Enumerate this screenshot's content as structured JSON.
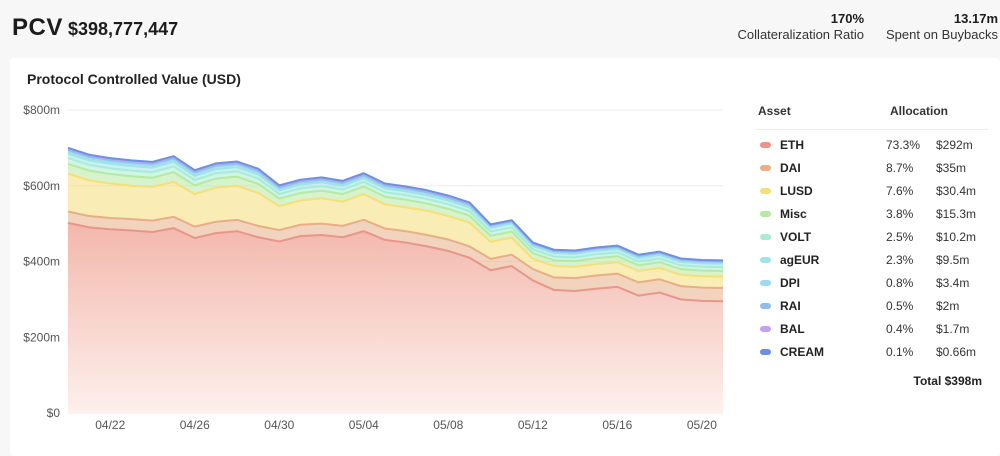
{
  "header": {
    "title": "PCV",
    "value": "$398,777,447",
    "stats": [
      {
        "value": "170%",
        "label": "Collateralization Ratio"
      },
      {
        "value": "13.17m",
        "label": "Spent on Buybacks"
      }
    ]
  },
  "chart_data": {
    "type": "area",
    "stacked": true,
    "title": "Protocol Controlled Value (USD)",
    "x": [
      "04/20",
      "04/21",
      "04/22",
      "04/23",
      "04/24",
      "04/25",
      "04/26",
      "04/27",
      "04/28",
      "04/29",
      "04/30",
      "05/01",
      "05/02",
      "05/03",
      "05/04",
      "05/05",
      "05/06",
      "05/07",
      "05/08",
      "05/09",
      "05/10",
      "05/11",
      "05/12",
      "05/13",
      "05/14",
      "05/15",
      "05/16",
      "05/17",
      "05/18",
      "05/19",
      "05/20",
      "05/21"
    ],
    "x_ticks": [
      "04/22",
      "04/26",
      "04/30",
      "05/04",
      "05/08",
      "05/12",
      "05/16",
      "05/20"
    ],
    "ylim": [
      0,
      800
    ],
    "y_ticks": [
      0,
      200,
      400,
      600,
      800
    ],
    "y_tick_labels": [
      "$0",
      "$200m",
      "$400m",
      "$600m",
      "$800m"
    ],
    "grid": true,
    "legend_position": "right",
    "series": [
      {
        "name": "ETH",
        "color": "#e8968a",
        "values": [
          502,
          490,
          485,
          482,
          478,
          488,
          462,
          475,
          480,
          464,
          453,
          467,
          470,
          464,
          480,
          457,
          450,
          440,
          428,
          410,
          377,
          388,
          350,
          325,
          322,
          328,
          333,
          310,
          318,
          300,
          296,
          295
        ]
      },
      {
        "name": "DAI",
        "color": "#e8ae86",
        "values": [
          30,
          30,
          30,
          30,
          30,
          30,
          30,
          30,
          30,
          30,
          30,
          30,
          30,
          30,
          30,
          30,
          30,
          30,
          30,
          30,
          30,
          30,
          30,
          33,
          34,
          35,
          35,
          35,
          35,
          35,
          35,
          35
        ]
      },
      {
        "name": "LUSD",
        "color": "#f4df79",
        "values": [
          100,
          94,
          91,
          88,
          89,
          92,
          86,
          90,
          90,
          87,
          63,
          64,
          67,
          64,
          68,
          64,
          63,
          64,
          62,
          63,
          45,
          45,
          27,
          30,
          30,
          30,
          30,
          30,
          30,
          30,
          30,
          30
        ]
      },
      {
        "name": "Misc",
        "color": "#b6e9a2",
        "values": [
          26,
          26,
          25,
          25,
          24,
          26,
          23,
          24,
          24,
          24,
          20,
          20,
          20,
          20,
          20,
          20,
          20,
          19,
          19,
          18,
          16,
          16,
          15,
          15,
          15,
          16,
          16,
          15,
          15,
          15,
          15,
          15
        ]
      },
      {
        "name": "VOLT",
        "color": "#a7ecd5",
        "values": [
          15,
          15,
          15,
          15,
          15,
          15,
          14,
          14,
          14,
          14,
          12,
          12,
          12,
          12,
          12,
          12,
          12,
          12,
          12,
          12,
          11,
          11,
          10,
          10,
          10,
          10,
          10,
          10,
          10,
          10,
          10,
          10
        ]
      },
      {
        "name": "agEUR",
        "color": "#9fe3e8",
        "values": [
          12,
          12,
          12,
          12,
          12,
          12,
          11,
          11,
          11,
          11,
          10,
          10,
          10,
          10,
          10,
          10,
          10,
          10,
          10,
          10,
          10,
          10,
          9,
          9,
          9,
          9,
          9,
          9,
          9,
          9,
          9,
          9
        ]
      },
      {
        "name": "DPI",
        "color": "#9cd9f3",
        "values": [
          6,
          6,
          6,
          6,
          6,
          6,
          6,
          6,
          6,
          6,
          5,
          5,
          5,
          5,
          5,
          5,
          5,
          5,
          5,
          5,
          4,
          4,
          4,
          4,
          4,
          4,
          4,
          4,
          4,
          4,
          4,
          4
        ]
      },
      {
        "name": "RAI",
        "color": "#8fbfe7",
        "values": [
          4,
          4,
          4,
          4,
          4,
          4,
          4,
          4,
          4,
          4,
          3,
          3,
          3,
          3,
          3,
          3,
          3,
          3,
          3,
          3,
          2,
          2,
          2,
          2,
          2,
          2,
          2,
          2,
          2,
          2,
          2,
          2
        ]
      },
      {
        "name": "BAL",
        "color": "#c3a3ee",
        "values": [
          3,
          3,
          3,
          3,
          3,
          3,
          3,
          3,
          3,
          3,
          3,
          3,
          3,
          3,
          3,
          3,
          3,
          3,
          3,
          3,
          2,
          2,
          2,
          2,
          2,
          2,
          2,
          2,
          2,
          2,
          2,
          2
        ]
      },
      {
        "name": "CREAM",
        "color": "#6e90e3",
        "values": [
          2,
          2,
          2,
          2,
          2,
          2,
          2,
          2,
          2,
          2,
          2,
          2,
          2,
          2,
          2,
          2,
          2,
          2,
          2,
          2,
          1,
          1,
          1,
          1,
          1,
          1,
          1,
          1,
          1,
          1,
          1,
          1
        ]
      }
    ]
  },
  "legend": {
    "asset_header": "Asset",
    "allocation_header": "Allocation",
    "rows": [
      {
        "name": "ETH",
        "pct": "73.3%",
        "amount": "$292m",
        "color": "#e8968a"
      },
      {
        "name": "DAI",
        "pct": "8.7%",
        "amount": "$35m",
        "color": "#e8ae86"
      },
      {
        "name": "LUSD",
        "pct": "7.6%",
        "amount": "$30.4m",
        "color": "#f4df79"
      },
      {
        "name": "Misc",
        "pct": "3.8%",
        "amount": "$15.3m",
        "color": "#b6e9a2"
      },
      {
        "name": "VOLT",
        "pct": "2.5%",
        "amount": "$10.2m",
        "color": "#a7ecd5"
      },
      {
        "name": "agEUR",
        "pct": "2.3%",
        "amount": "$9.5m",
        "color": "#9fe3e8"
      },
      {
        "name": "DPI",
        "pct": "0.8%",
        "amount": "$3.4m",
        "color": "#9cd9f3"
      },
      {
        "name": "RAI",
        "pct": "0.5%",
        "amount": "$2m",
        "color": "#8fbfe7"
      },
      {
        "name": "BAL",
        "pct": "0.4%",
        "amount": "$1.7m",
        "color": "#c3a3ee"
      },
      {
        "name": "CREAM",
        "pct": "0.1%",
        "amount": "$0.66m",
        "color": "#6e90e3"
      }
    ],
    "total": "Total $398m"
  }
}
